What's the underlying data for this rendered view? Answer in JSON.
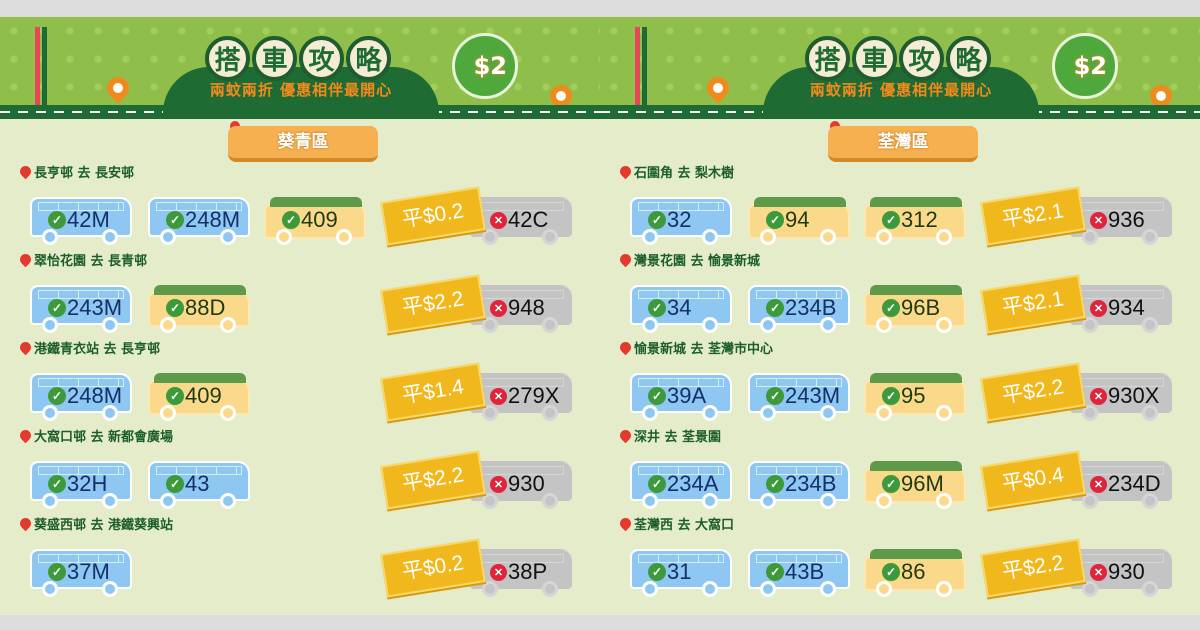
{
  "header": {
    "title_chars": [
      "搭",
      "車",
      "攻",
      "略"
    ],
    "subtitle": "兩蚊兩折 優惠相伴最開心",
    "badge": "$2"
  },
  "colors": {
    "accent": "#1f6b34",
    "bus": "#8ec8f2",
    "minibus": "#fbd98a",
    "ticket": "#f0b81c",
    "excluded": "#c4c4c4"
  },
  "panels": [
    {
      "district": "葵青區",
      "routes": [
        {
          "label": "長亨邨 去 長安邨",
          "eligible": [
            {
              "type": "bus",
              "no": "42M"
            },
            {
              "type": "bus",
              "no": "248M"
            },
            {
              "type": "minibus",
              "no": "409"
            }
          ],
          "saving": "平$0.2",
          "other": "42C"
        },
        {
          "label": "翠怡花園 去 長青邨",
          "eligible": [
            {
              "type": "bus",
              "no": "243M"
            },
            {
              "type": "minibus",
              "no": "88D"
            }
          ],
          "saving": "平$2.2",
          "other": "948"
        },
        {
          "label": "港鐵青衣站 去 長亨邨",
          "eligible": [
            {
              "type": "bus",
              "no": "248M"
            },
            {
              "type": "minibus",
              "no": "409"
            }
          ],
          "saving": "平$1.4",
          "other": "279X"
        },
        {
          "label": "大窩口邨 去 新都會廣場",
          "eligible": [
            {
              "type": "bus",
              "no": "32H"
            },
            {
              "type": "bus",
              "no": "43"
            }
          ],
          "saving": "平$2.2",
          "other": "930"
        },
        {
          "label": "葵盛西邨 去 港鐵葵興站",
          "eligible": [
            {
              "type": "bus",
              "no": "37M"
            }
          ],
          "saving": "平$0.2",
          "other": "38P"
        }
      ]
    },
    {
      "district": "荃灣區",
      "routes": [
        {
          "label": "石圍角 去 梨木樹",
          "eligible": [
            {
              "type": "bus",
              "no": "32"
            },
            {
              "type": "minibus",
              "no": "94"
            },
            {
              "type": "minibus",
              "no": "312"
            }
          ],
          "saving": "平$2.1",
          "other": "936"
        },
        {
          "label": "灣景花園 去 愉景新城",
          "eligible": [
            {
              "type": "bus",
              "no": "34"
            },
            {
              "type": "bus",
              "no": "234B"
            },
            {
              "type": "minibus",
              "no": "96B"
            }
          ],
          "saving": "平$2.1",
          "other": "934"
        },
        {
          "label": "愉景新城 去 荃灣市中心",
          "eligible": [
            {
              "type": "bus",
              "no": "39A"
            },
            {
              "type": "bus",
              "no": "243M"
            },
            {
              "type": "minibus",
              "no": "95"
            }
          ],
          "saving": "平$2.2",
          "other": "930X"
        },
        {
          "label": "深井 去 荃景圍",
          "eligible": [
            {
              "type": "bus",
              "no": "234A"
            },
            {
              "type": "bus",
              "no": "234B"
            },
            {
              "type": "minibus",
              "no": "96M"
            }
          ],
          "saving": "平$0.4",
          "other": "234D"
        },
        {
          "label": "荃灣西 去 大窩口",
          "eligible": [
            {
              "type": "bus",
              "no": "31"
            },
            {
              "type": "bus",
              "no": "43B"
            },
            {
              "type": "minibus",
              "no": "86"
            }
          ],
          "saving": "平$2.2",
          "other": "930"
        }
      ]
    }
  ]
}
